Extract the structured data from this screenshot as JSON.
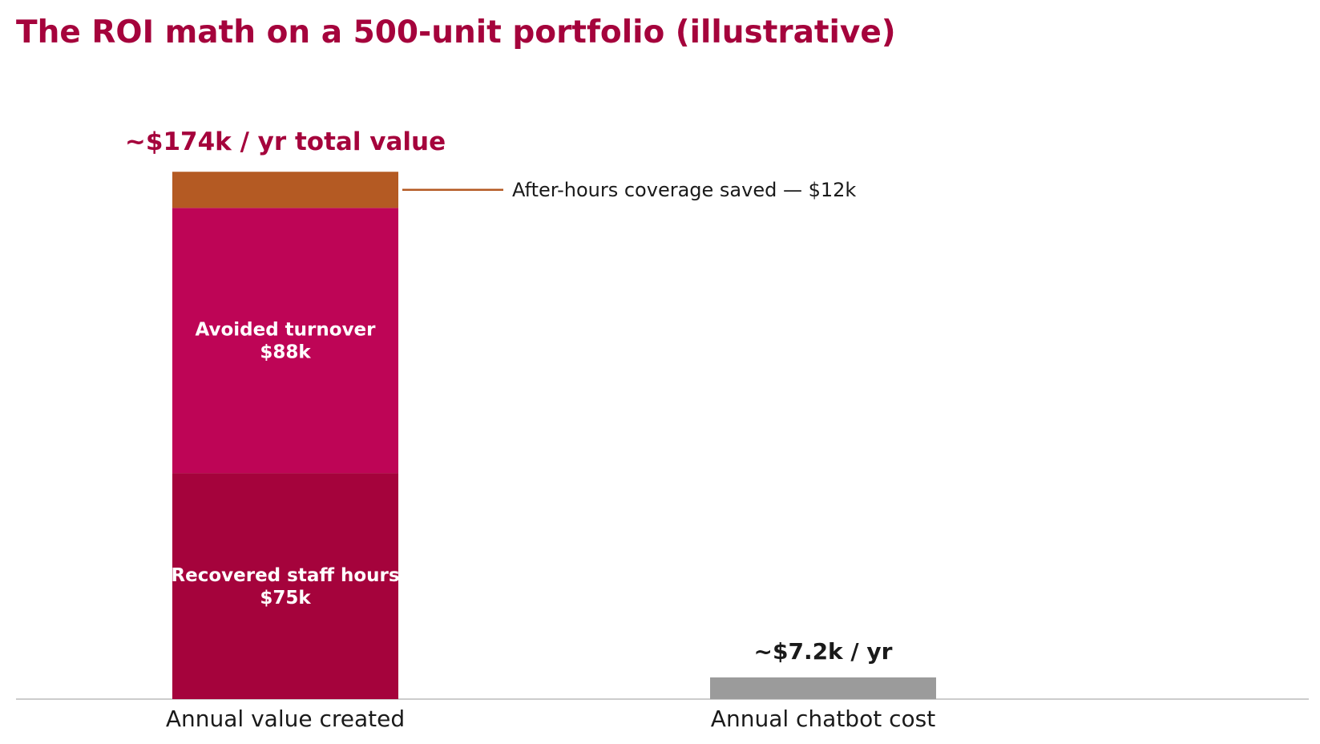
{
  "chart_data": {
    "type": "bar",
    "stacked": true,
    "title": "The ROI math on a 500-unit portfolio (illustrative)",
    "categories": [
      "Annual value created",
      "Annual chatbot cost"
    ],
    "units": "$k",
    "ylim": [
      0,
      174
    ],
    "grid": false,
    "value_stack": {
      "category": "Annual value created",
      "segments": [
        {
          "label_line1": "Recovered staff hours",
          "label_line2": "$75k",
          "value": 75,
          "color": "#A5033C"
        },
        {
          "label_line1": "Avoided turnover",
          "label_line2": "$88k",
          "value": 88,
          "color": "#BE0556"
        },
        {
          "annotation": "After-hours coverage saved — $12k",
          "value": 12,
          "color": "#B45A23"
        }
      ],
      "total_label": "~$174k / yr total value"
    },
    "cost_bar": {
      "category": "Annual chatbot cost",
      "value": 7.2,
      "color": "#9B9B9B",
      "label": "~$7.2k / yr"
    },
    "colors": {
      "title": "#A5033C",
      "total_label": "#A5033C",
      "text": "#1A1A1A",
      "segment_text": "#FFFFFF",
      "leader_line": "#B45A23",
      "baseline": "#CCCCCC"
    }
  }
}
